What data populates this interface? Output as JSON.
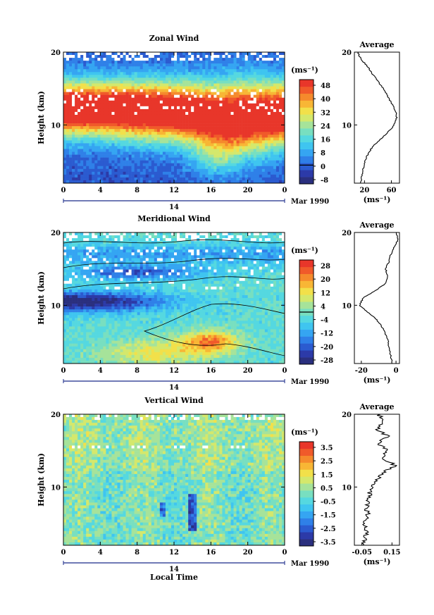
{
  "colors": {
    "scale": [
      "#2a2f7e",
      "#2c3aa8",
      "#2b5bd0",
      "#2f80e8",
      "#35a5f2",
      "#3fc5f0",
      "#55d8e0",
      "#78dfc0",
      "#a6e39a",
      "#d4e86c",
      "#f2e04a",
      "#f8b635",
      "#f58a2c",
      "#f05a2a",
      "#e8362a"
    ]
  },
  "date_label": "Mar 1990",
  "day_label": "14",
  "xlabel": "Local Time",
  "x_ticks": [
    "0",
    "4",
    "8",
    "12",
    "16",
    "20",
    "0"
  ],
  "panels": [
    {
      "title": "Zonal Wind",
      "ylabel": "Height (km)",
      "y_ticks": [
        "20",
        "10"
      ],
      "unit": "(ms⁻¹)",
      "colorbar_ticks": [
        "48",
        "40",
        "32",
        "24",
        "16",
        "8",
        "0",
        "-8"
      ],
      "avg_title": "Average",
      "avg_y_ticks": [
        "20",
        "10"
      ],
      "avg_x_ticks": [
        "20",
        "60"
      ],
      "avg_unit": "(ms⁻¹)"
    },
    {
      "title": "Meridional Wind",
      "ylabel": "Height (km)",
      "y_ticks": [
        "20",
        "10"
      ],
      "unit": "(ms⁻¹)",
      "colorbar_ticks": [
        "28",
        "20",
        "12",
        "4",
        "-4",
        "-12",
        "-20",
        "-28"
      ],
      "avg_title": "Average",
      "avg_y_ticks": [
        "20",
        "10"
      ],
      "avg_x_ticks": [
        "-20",
        "0"
      ],
      "avg_unit": "(ms⁻¹)"
    },
    {
      "title": "Vertical Wind",
      "ylabel": "Height (km)",
      "y_ticks": [
        "20",
        "10"
      ],
      "unit": "(ms⁻¹)",
      "colorbar_ticks": [
        "3.5",
        "2.5",
        "1.5",
        "0.5",
        "-0.5",
        "-1.5",
        "-2.5",
        "-3.5"
      ],
      "avg_title": "Average",
      "avg_y_ticks": [
        "20",
        "10"
      ],
      "avg_x_ticks": [
        "-0.05",
        "0.15"
      ],
      "avg_unit": "(ms⁻¹)"
    }
  ],
  "chart_data": [
    {
      "type": "heatmap",
      "title": "Zonal Wind",
      "xlabel": "",
      "ylabel": "Height (km)",
      "x_range_hours": [
        0,
        24
      ],
      "y_range_km": [
        2,
        20
      ],
      "colorbar_range": [
        -8,
        52
      ],
      "profile_hours": [
        0,
        4,
        8,
        12,
        14,
        16,
        18,
        20,
        24
      ],
      "jet_center_km": [
        12.2,
        12.2,
        12.0,
        11.8,
        11.5,
        11.0,
        10.8,
        11.0,
        11.5
      ],
      "jet_width_km": [
        3.8,
        3.8,
        4.0,
        4.1,
        4.3,
        4.6,
        5.0,
        4.8,
        4.3
      ],
      "average_profile": {
        "type": "line",
        "title": "Average",
        "xlim": [
          5,
          72
        ],
        "height_km": [
          2,
          3,
          4,
          5,
          6,
          7,
          8,
          9,
          10,
          11,
          12,
          13,
          14,
          15,
          16,
          17,
          18,
          19,
          20
        ],
        "speed_ms": [
          14,
          16,
          18,
          21,
          25,
          32,
          43,
          55,
          64,
          68,
          66,
          60,
          54,
          48,
          40,
          32,
          25,
          15,
          10
        ]
      }
    },
    {
      "type": "heatmap",
      "title": "Meridional Wind",
      "xlabel": "",
      "ylabel": "Height (km)",
      "x_range_hours": [
        0,
        24
      ],
      "y_range_km": [
        2,
        20
      ],
      "colorbar_range": [
        -30,
        32
      ],
      "average_profile": {
        "type": "line",
        "title": "Average",
        "xlim": [
          -24,
          2
        ],
        "height_km": [
          2,
          3,
          4,
          5,
          6,
          7,
          8,
          9,
          10,
          11,
          12,
          13,
          14,
          15,
          16,
          17,
          18,
          19,
          20
        ],
        "speed_ms": [
          -2,
          -3,
          -4,
          -4.5,
          -6,
          -8,
          -11,
          -16,
          -21,
          -19,
          -12,
          -6,
          -5,
          -6,
          -4,
          -3,
          -1,
          1,
          0
        ]
      }
    },
    {
      "type": "heatmap",
      "title": "Vertical Wind",
      "xlabel": "Local Time",
      "ylabel": "Height (km)",
      "x_range_hours": [
        0,
        24
      ],
      "y_range_km": [
        2,
        20
      ],
      "colorbar_range": [
        -4,
        4
      ],
      "average_profile": {
        "type": "line",
        "title": "Average",
        "xlim": [
          -0.1,
          0.2
        ],
        "height_km": [
          2,
          3,
          4,
          5,
          6,
          7,
          8,
          9,
          10,
          11,
          12,
          13,
          14,
          15,
          16,
          17,
          18,
          19,
          20
        ],
        "speed_ms": [
          -0.04,
          -0.03,
          -0.02,
          -0.03,
          -0.01,
          -0.02,
          -0.01,
          0.0,
          0.02,
          0.05,
          0.1,
          0.17,
          0.08,
          0.13,
          0.06,
          0.12,
          0.05,
          0.09,
          0.06
        ]
      }
    }
  ]
}
